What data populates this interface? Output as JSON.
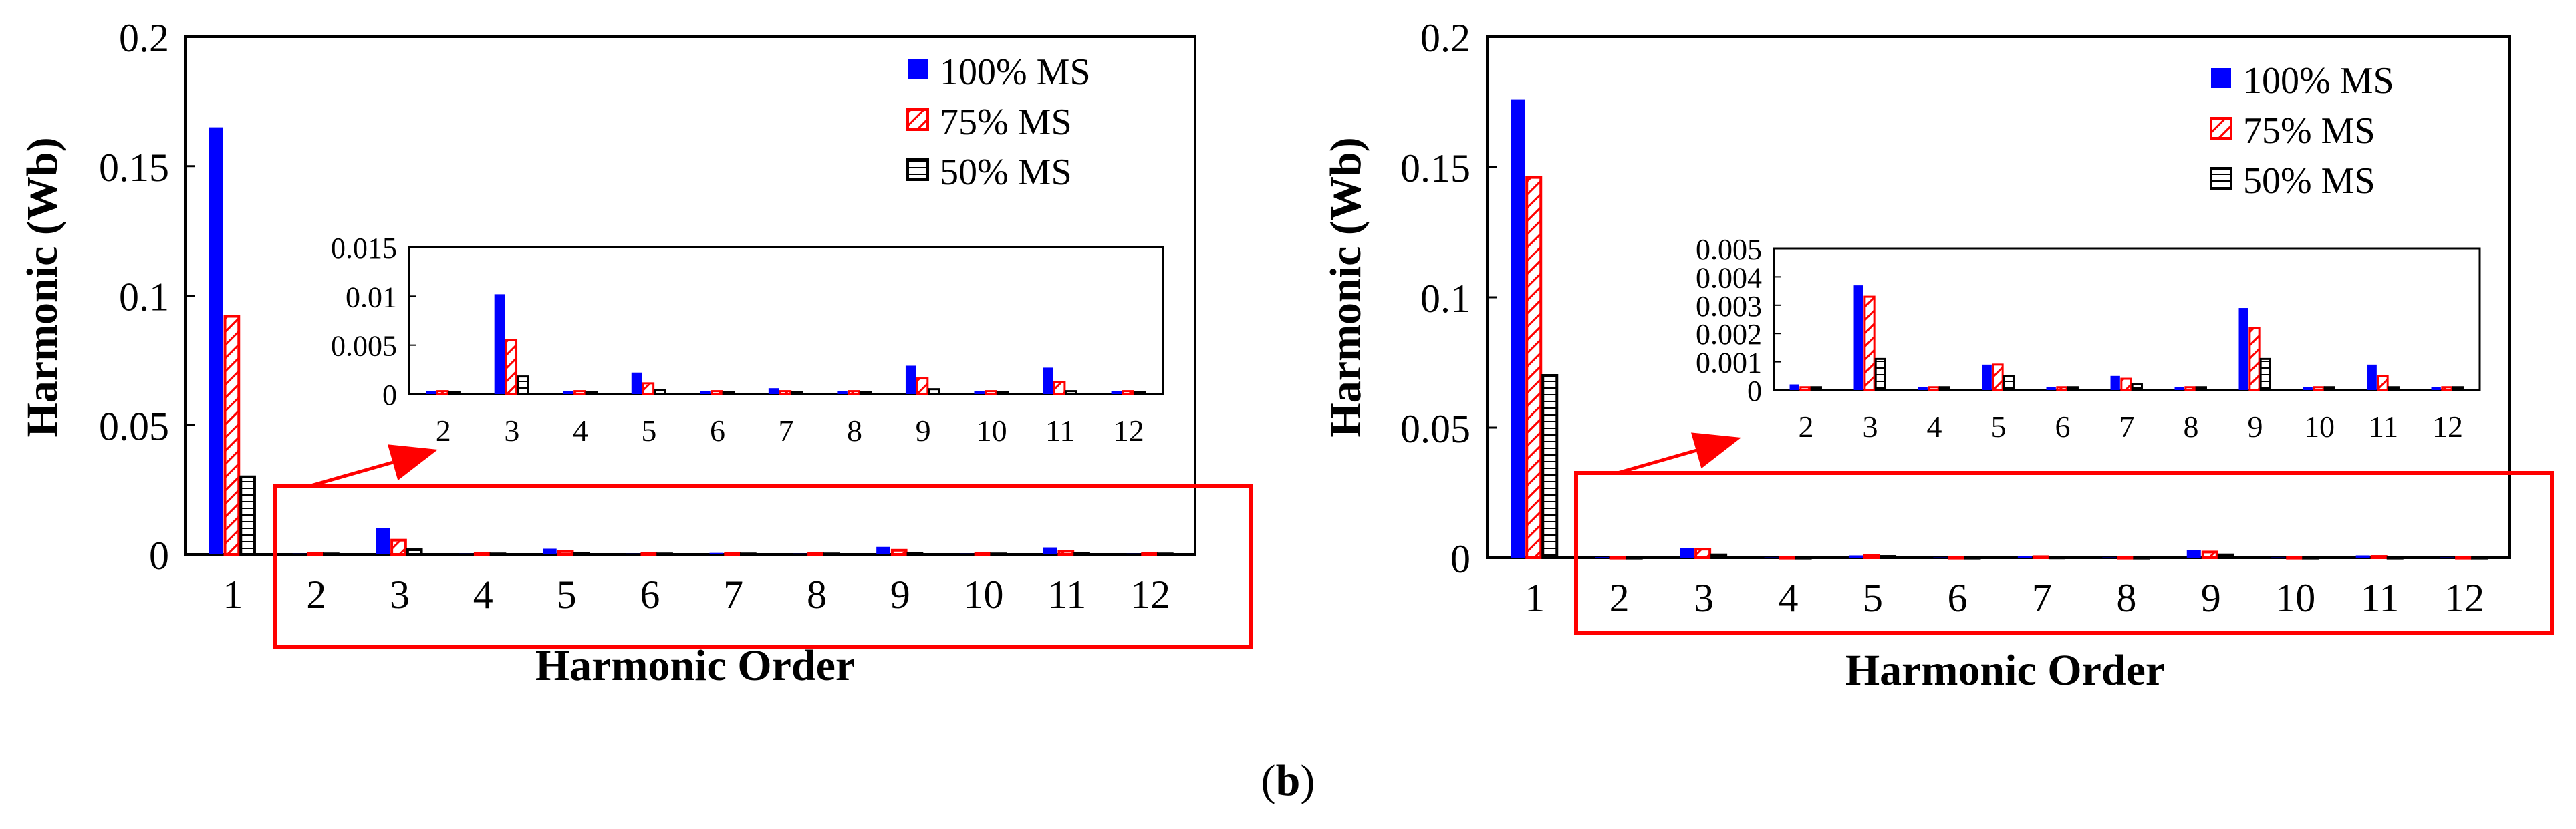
{
  "caption": {
    "open": "(",
    "letter": "b",
    "close": ")"
  },
  "colors": {
    "s100": "#0000FF",
    "s75": "#FF0000",
    "s50": "#000000",
    "highlight": "#FF0000"
  },
  "chart_data": [
    {
      "type": "bar",
      "panel": "left",
      "xlabel": "Harmonic Order",
      "ylabel": "Harmonic (Wb)",
      "categories": [
        "1",
        "2",
        "3",
        "4",
        "5",
        "6",
        "7",
        "8",
        "9",
        "10",
        "11",
        "12"
      ],
      "ylim": [
        0,
        0.2
      ],
      "yticks": [
        "0",
        "0.05",
        "0.1",
        "0.15",
        "0.2"
      ],
      "legend": {
        "position": "top-right",
        "entries": [
          "100% MS",
          "75% MS",
          "50% MS"
        ]
      },
      "series": [
        {
          "name": "100% MS",
          "values": [
            0.165,
            0.0003,
            0.0102,
            0.0003,
            0.0022,
            0.0003,
            0.0006,
            0.0003,
            0.0029,
            0.0003,
            0.0027,
            0.0003
          ]
        },
        {
          "name": "75% MS",
          "values": [
            0.092,
            0.0003,
            0.0055,
            0.0003,
            0.0011,
            0.0003,
            0.0003,
            0.0003,
            0.0016,
            0.0003,
            0.0012,
            0.0003
          ]
        },
        {
          "name": "50% MS",
          "values": [
            0.03,
            0.0002,
            0.0018,
            0.0002,
            0.0004,
            0.0002,
            0.0002,
            0.0002,
            0.0005,
            0.0002,
            0.0003,
            0.0002
          ]
        }
      ],
      "inset": {
        "categories": [
          "2",
          "3",
          "4",
          "5",
          "6",
          "7",
          "8",
          "9",
          "10",
          "11",
          "12"
        ],
        "ylim": [
          0,
          0.015
        ],
        "yticks": [
          "0",
          "0.005",
          "0.01",
          "0.015"
        ]
      }
    },
    {
      "type": "bar",
      "panel": "right",
      "xlabel": "Harmonic Order",
      "ylabel": "Harmonic (Wb)",
      "categories": [
        "1",
        "2",
        "3",
        "4",
        "5",
        "6",
        "7",
        "8",
        "9",
        "10",
        "11",
        "12"
      ],
      "ylim": [
        0,
        0.2
      ],
      "yticks": [
        "0",
        "0.05",
        "0.1",
        "0.15",
        "0.2"
      ],
      "legend": {
        "position": "top-right",
        "entries": [
          "100% MS",
          "75% MS",
          "50% MS"
        ]
      },
      "series": [
        {
          "name": "100% MS",
          "values": [
            0.176,
            0.0002,
            0.0037,
            0.0001,
            0.0009,
            0.0001,
            0.0005,
            0.0001,
            0.0029,
            0.0001,
            0.0009,
            0.0001
          ]
        },
        {
          "name": "75% MS",
          "values": [
            0.146,
            0.0001,
            0.0033,
            0.0001,
            0.0009,
            0.0001,
            0.0004,
            0.0001,
            0.0022,
            0.0001,
            0.0005,
            0.0001
          ]
        },
        {
          "name": "50% MS",
          "values": [
            0.07,
            0.0001,
            0.0011,
            0.0001,
            0.0005,
            0.0001,
            0.0002,
            0.0001,
            0.0011,
            0.0001,
            0.0001,
            0.0001
          ]
        }
      ],
      "inset": {
        "categories": [
          "2",
          "3",
          "4",
          "5",
          "6",
          "7",
          "8",
          "9",
          "10",
          "11",
          "12"
        ],
        "ylim": [
          0,
          0.005
        ],
        "yticks": [
          "0",
          "0.001",
          "0.002",
          "0.003",
          "0.004",
          "0.005"
        ]
      }
    }
  ]
}
